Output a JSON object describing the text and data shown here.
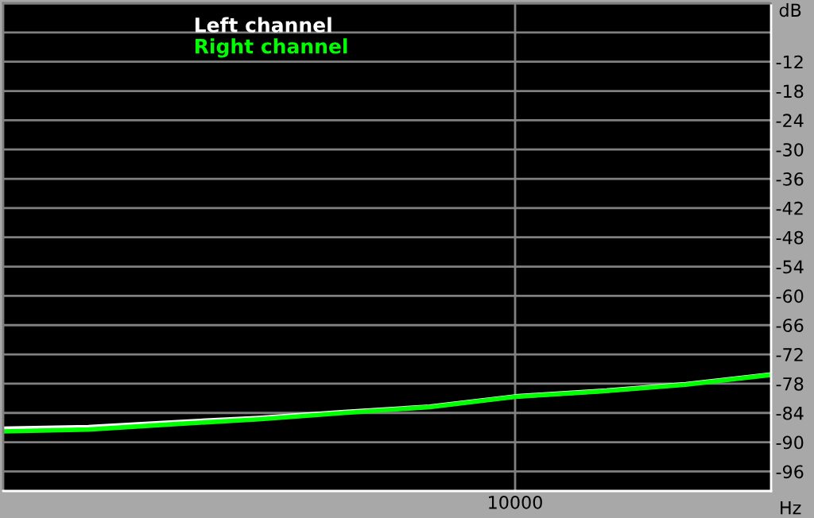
{
  "chart_data": {
    "type": "line",
    "xlabel": "Hz",
    "ylabel": "dB",
    "grid": true,
    "legend": "top left",
    "categories": [
      null,
      null,
      null,
      null,
      null,
      null,
      "10000",
      null,
      null,
      null
    ],
    "ylim": [
      -100,
      0
    ],
    "yticks": [
      {
        "value": 0,
        "label": null
      },
      {
        "value": -6,
        "label": null
      },
      {
        "value": -12,
        "label": "-12"
      },
      {
        "value": -18,
        "label": "-18"
      },
      {
        "value": -24,
        "label": "-24"
      },
      {
        "value": -30,
        "label": "-30"
      },
      {
        "value": -36,
        "label": "-36"
      },
      {
        "value": -42,
        "label": "-42"
      },
      {
        "value": -48,
        "label": "-48"
      },
      {
        "value": -54,
        "label": "-54"
      },
      {
        "value": -60,
        "label": "-60"
      },
      {
        "value": -66,
        "label": "-66"
      },
      {
        "value": -72,
        "label": "-72"
      },
      {
        "value": -78,
        "label": "-78"
      },
      {
        "value": -84,
        "label": "-84"
      },
      {
        "value": -90,
        "label": "-90"
      },
      {
        "value": -96,
        "label": "-96"
      }
    ],
    "series": [
      {
        "name": "Left channel",
        "color": "#ffffff",
        "values": [
          -87.2,
          -86.9,
          -85.9,
          -85.0,
          -83.8,
          -82.7,
          -80.6,
          -79.5,
          -78.1,
          -76.1
        ]
      },
      {
        "name": "Right channel",
        "color": "#00ff00",
        "values": [
          -87.8,
          -87.4,
          -86.3,
          -85.3,
          -84.0,
          -82.8,
          -80.7,
          -79.6,
          -78.2,
          -76.2
        ]
      }
    ]
  }
}
